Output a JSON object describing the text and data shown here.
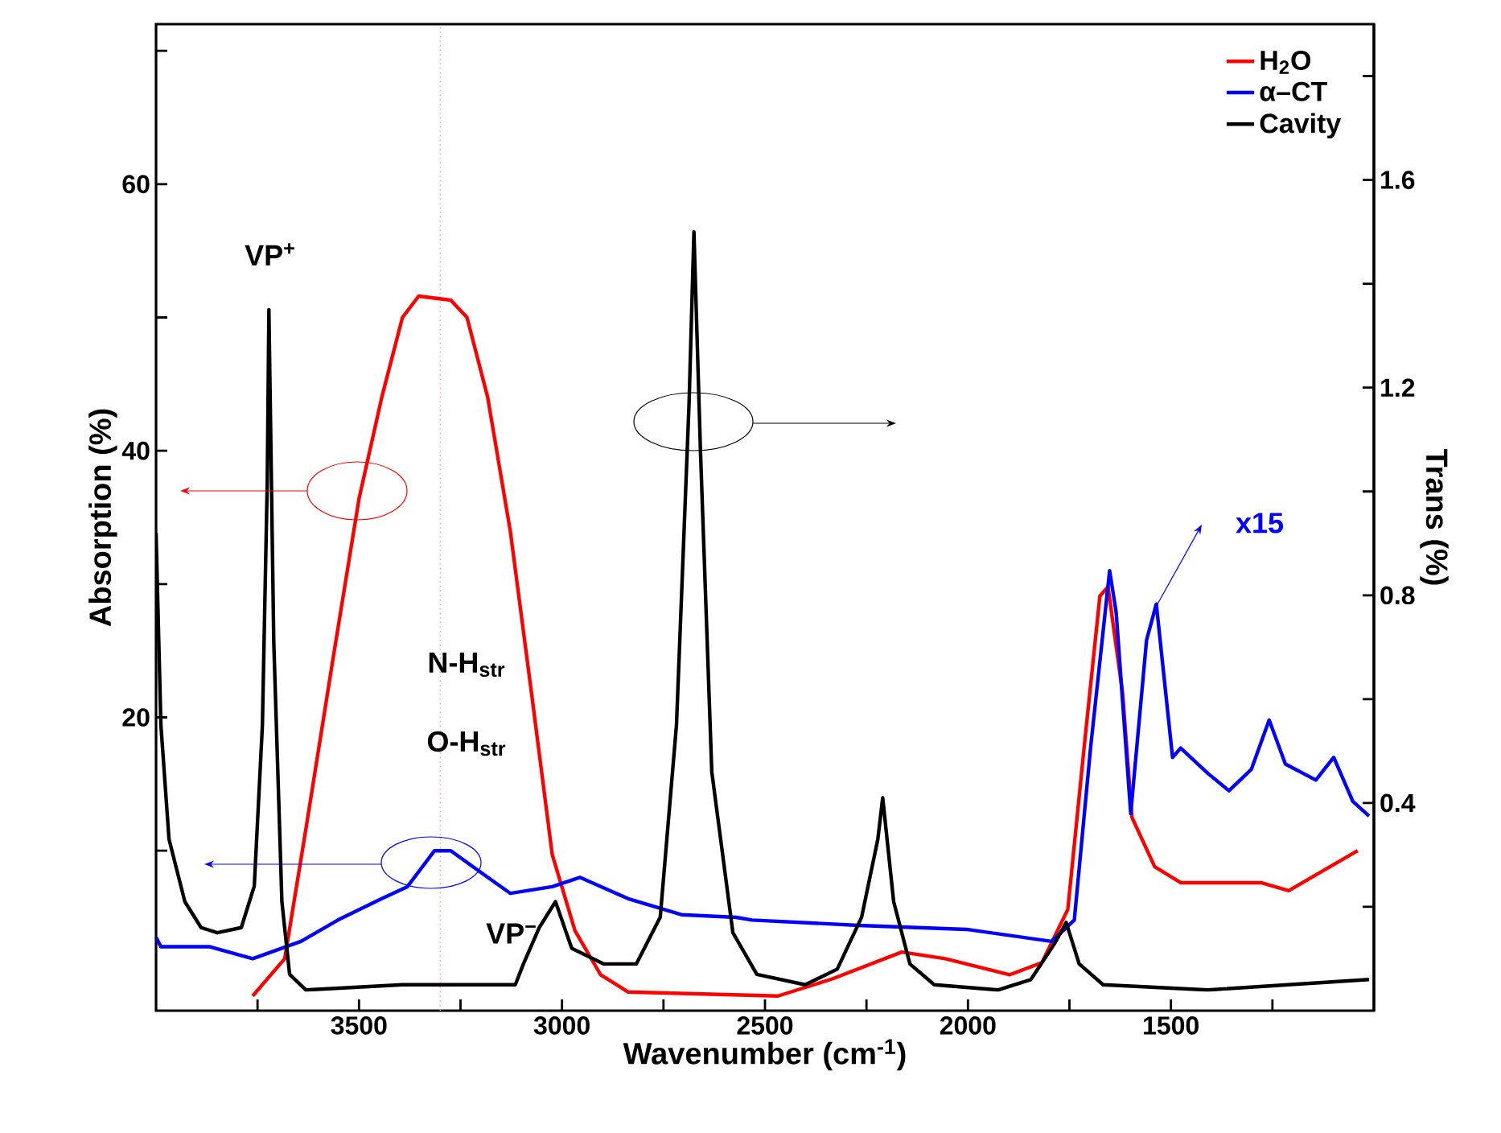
{
  "chart_data": {
    "type": "line",
    "xlabel": "Wavenumber (cm$^{-1}$)",
    "ylabel": "Absorption (%)",
    "y2label": "Trans (%)",
    "xlim": [
      4000,
      1000
    ],
    "ylim": [
      -2,
      72
    ],
    "y2lim": [
      0,
      1.9
    ],
    "xticks": [
      {
        "value": 3750,
        "label": null
      },
      3500,
      {
        "value": 3250,
        "label": null
      },
      3000,
      {
        "value": 2750,
        "label": null
      },
      2500,
      {
        "value": 2250,
        "label": null
      },
      2000,
      {
        "value": 1750,
        "label": null
      },
      1500,
      {
        "value": 1250,
        "label": null
      }
    ],
    "yticks": [
      {
        "value": 10,
        "label": null
      },
      20,
      {
        "value": 30,
        "label": null
      },
      40,
      {
        "value": 50,
        "label": null
      },
      60,
      {
        "value": 70,
        "label": null
      }
    ],
    "y2ticks": [
      {
        "value": 0.2,
        "label": null
      },
      0.4,
      {
        "value": 0.6,
        "label": null
      },
      0.8,
      {
        "value": 1.0,
        "label": null
      },
      1.2,
      {
        "value": 1.4,
        "label": null
      },
      1.6,
      {
        "value": 1.8,
        "label": null
      }
    ],
    "legend": "top right",
    "line_style": "solid",
    "series": [
      {
        "name": "H$_{2}$O",
        "color": "#ff0000",
        "x": [
          3762,
          3683,
          3631,
          3563,
          3500,
          3444,
          3393,
          3353,
          3274,
          3234,
          3183,
          3127,
          3075,
          3024,
          2968,
          2905,
          2837,
          2468,
          2333,
          2163,
          2056,
          1897,
          1818,
          1754,
          1714,
          1675,
          1655,
          1619,
          1596,
          1540,
          1476,
          1278,
          1210,
          1040
        ],
        "values": [
          -0.9,
          1.9,
          11.6,
          24.6,
          36.4,
          44,
          50,
          51.6,
          51.3,
          50,
          44,
          33.9,
          21.8,
          9.7,
          4,
          0.7,
          -0.6,
          -0.9,
          0.4,
          2.4,
          1.9,
          0.7,
          1.6,
          5.6,
          17.7,
          29.1,
          29.8,
          21.8,
          12.5,
          8.8,
          7.6,
          7.6,
          7,
          10
        ]
      },
      {
        "name": "α–CT",
        "color": "#0000ff",
        "x": [
          4000,
          3988,
          3869,
          3762,
          3643,
          3552,
          3444,
          3381,
          3314,
          3274,
          3183,
          3127,
          3024,
          2956,
          2837,
          2706,
          2571,
          2532,
          2270,
          2004,
          1794,
          1738,
          1698,
          1651,
          1635,
          1599,
          1560,
          1536,
          1496,
          1476,
          1409,
          1357,
          1302,
          1258,
          1218,
          1143,
          1099,
          1052,
          1012
        ],
        "values": [
          3.5,
          2.8,
          2.8,
          1.9,
          3.2,
          4.8,
          6.4,
          7.3,
          10,
          10,
          8,
          6.8,
          7.3,
          8,
          6.4,
          5.2,
          5,
          4.8,
          4.4,
          4.1,
          3.2,
          4.8,
          17.7,
          31,
          27.9,
          12.8,
          25.8,
          28.5,
          17,
          17.7,
          15.8,
          14.5,
          16.1,
          19.8,
          16.5,
          15.3,
          17,
          13.7,
          12.6
        ]
      },
      {
        "name": "Cavity",
        "color": "#000000",
        "axis": "y2",
        "x": [
          4000,
          3988,
          3968,
          3929,
          3889,
          3849,
          3790,
          3758,
          3738,
          3726,
          3722,
          3710,
          3690,
          3671,
          3631,
          3393,
          3115,
          3095,
          3056,
          3016,
          2976,
          2897,
          2817,
          2758,
          2718,
          2687,
          2675,
          2659,
          2631,
          2579,
          2520,
          2401,
          2322,
          2262,
          2222,
          2210,
          2183,
          2143,
          2083,
          1925,
          1845,
          1786,
          1758,
          1726,
          1667,
          1409,
          1012
        ],
        "values": [
          0.92,
          0.55,
          0.33,
          0.21,
          0.16,
          0.15,
          0.16,
          0.24,
          0.55,
          1.02,
          1.35,
          0.71,
          0.21,
          0.07,
          0.04,
          0.05,
          0.05,
          0.09,
          0.16,
          0.21,
          0.12,
          0.09,
          0.09,
          0.18,
          0.55,
          1.17,
          1.5,
          1.08,
          0.46,
          0.15,
          0.07,
          0.05,
          0.08,
          0.18,
          0.33,
          0.41,
          0.21,
          0.09,
          0.05,
          0.04,
          0.06,
          0.13,
          0.17,
          0.09,
          0.05,
          0.04,
          0.06
        ]
      }
    ],
    "ref_lines": [
      {
        "axis": "x",
        "value": 3300,
        "color": "#ffaaaa",
        "line_style": "dotted"
      }
    ],
    "annotations": [
      "VP$^{+}$",
      "N-H$_{str}$",
      "O-H$_{str}$",
      "VP$^{−}$",
      "x15"
    ]
  }
}
